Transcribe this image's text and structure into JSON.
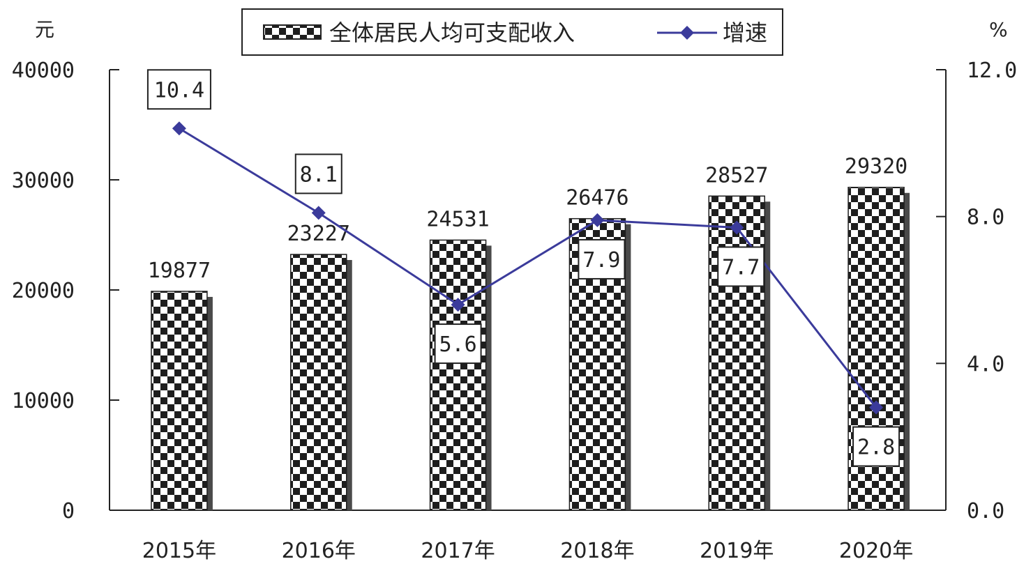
{
  "chart_data": {
    "type": "bar",
    "categories": [
      "2015年",
      "2016年",
      "2017年",
      "2018年",
      "2019年",
      "2020年"
    ],
    "series": [
      {
        "name": "全体居民人均可支配收入",
        "kind": "bar",
        "axis": "left",
        "values": [
          19877,
          23227,
          24531,
          26476,
          28527,
          29320
        ]
      },
      {
        "name": "增速",
        "kind": "line",
        "axis": "right",
        "values": [
          10.4,
          8.1,
          5.6,
          7.9,
          7.7,
          2.8
        ]
      }
    ],
    "bar_labels": [
      "19877",
      "23227",
      "24531",
      "26476",
      "28527",
      "29320"
    ],
    "line_labels": [
      "10.4",
      "8.1",
      "5.6",
      "7.9",
      "7.7",
      "2.8"
    ],
    "y_left": {
      "unit": "元",
      "ylim": [
        0,
        40000
      ],
      "ticks": [
        "0",
        "10000",
        "20000",
        "30000",
        "40000"
      ]
    },
    "y_right": {
      "unit": "%",
      "ylim": [
        0,
        12
      ],
      "ticks": [
        "0.0",
        "4.0",
        "8.0",
        "12.0"
      ]
    },
    "legend_position": "top",
    "grid": false
  },
  "colors": {
    "line": "#3b3b9b",
    "bar_dark": "#1e1e1e",
    "bar_light": "#ffffff",
    "bar_shadow": "#4a4a4a",
    "axis": "#222222"
  }
}
